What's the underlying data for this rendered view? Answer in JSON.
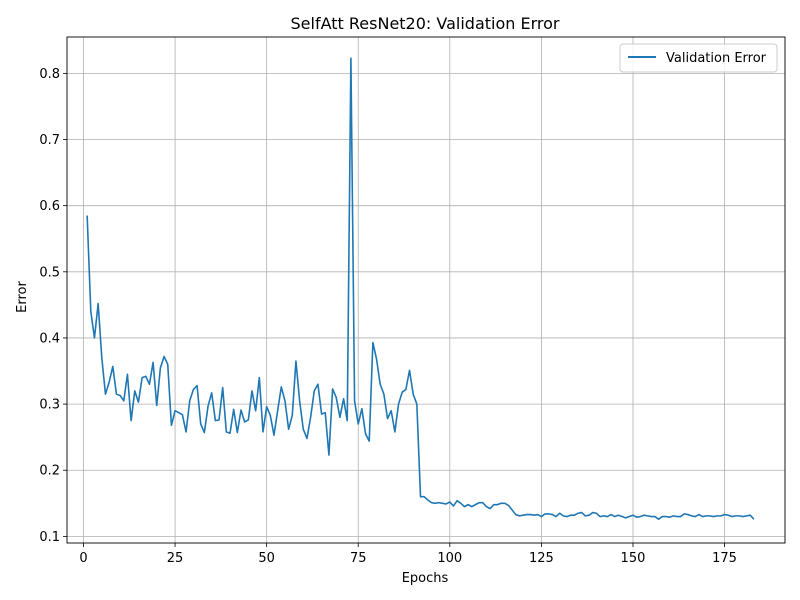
{
  "chart_data": {
    "type": "line",
    "title": "SelfAtt ResNet20: Validation Error",
    "xlabel": "Epochs",
    "ylabel": "Error",
    "xlim": [
      -4.5,
      191.5
    ],
    "ylim": [
      0.09,
      0.855
    ],
    "xticks": [
      0,
      25,
      50,
      75,
      100,
      125,
      150,
      175
    ],
    "yticks": [
      0.1,
      0.2,
      0.3,
      0.4,
      0.5,
      0.6,
      0.7,
      0.8
    ],
    "grid": true,
    "legend_position": "top-right",
    "series": [
      {
        "name": "Validation Error",
        "color": "#1f77b4",
        "x_start": 1,
        "x_step": 1,
        "values": [
          0.585,
          0.44,
          0.4,
          0.452,
          0.37,
          0.315,
          0.333,
          0.357,
          0.315,
          0.313,
          0.305,
          0.345,
          0.275,
          0.32,
          0.303,
          0.34,
          0.342,
          0.33,
          0.363,
          0.298,
          0.355,
          0.372,
          0.36,
          0.268,
          0.29,
          0.287,
          0.284,
          0.258,
          0.305,
          0.322,
          0.328,
          0.27,
          0.257,
          0.297,
          0.317,
          0.275,
          0.276,
          0.325,
          0.258,
          0.256,
          0.292,
          0.257,
          0.291,
          0.273,
          0.276,
          0.32,
          0.29,
          0.34,
          0.258,
          0.296,
          0.283,
          0.253,
          0.29,
          0.326,
          0.305,
          0.262,
          0.283,
          0.365,
          0.305,
          0.262,
          0.248,
          0.28,
          0.32,
          0.33,
          0.285,
          0.287,
          0.223,
          0.323,
          0.31,
          0.28,
          0.308,
          0.275,
          0.823,
          0.305,
          0.27,
          0.293,
          0.255,
          0.244,
          0.393,
          0.368,
          0.33,
          0.315,
          0.278,
          0.29,
          0.258,
          0.3,
          0.318,
          0.322,
          0.351,
          0.315,
          0.3,
          0.16,
          0.16,
          0.155,
          0.151,
          0.15,
          0.151,
          0.15,
          0.149,
          0.152,
          0.146,
          0.154,
          0.15,
          0.145,
          0.148,
          0.145,
          0.148,
          0.151,
          0.151,
          0.145,
          0.142,
          0.148,
          0.148,
          0.15,
          0.15,
          0.147,
          0.14,
          0.133,
          0.131,
          0.132,
          0.133,
          0.133,
          0.132,
          0.133,
          0.13,
          0.134,
          0.134,
          0.133,
          0.13,
          0.135,
          0.131,
          0.13,
          0.132,
          0.132,
          0.135,
          0.136,
          0.131,
          0.132,
          0.136,
          0.135,
          0.13,
          0.131,
          0.13,
          0.133,
          0.13,
          0.132,
          0.13,
          0.128,
          0.13,
          0.132,
          0.129,
          0.13,
          0.132,
          0.131,
          0.13,
          0.13,
          0.126,
          0.13,
          0.13,
          0.129,
          0.131,
          0.13,
          0.13,
          0.134,
          0.133,
          0.131,
          0.13,
          0.133,
          0.13,
          0.131,
          0.131,
          0.13,
          0.131,
          0.131,
          0.133,
          0.132,
          0.13,
          0.131,
          0.131,
          0.13,
          0.131,
          0.132,
          0.126
        ]
      }
    ]
  }
}
